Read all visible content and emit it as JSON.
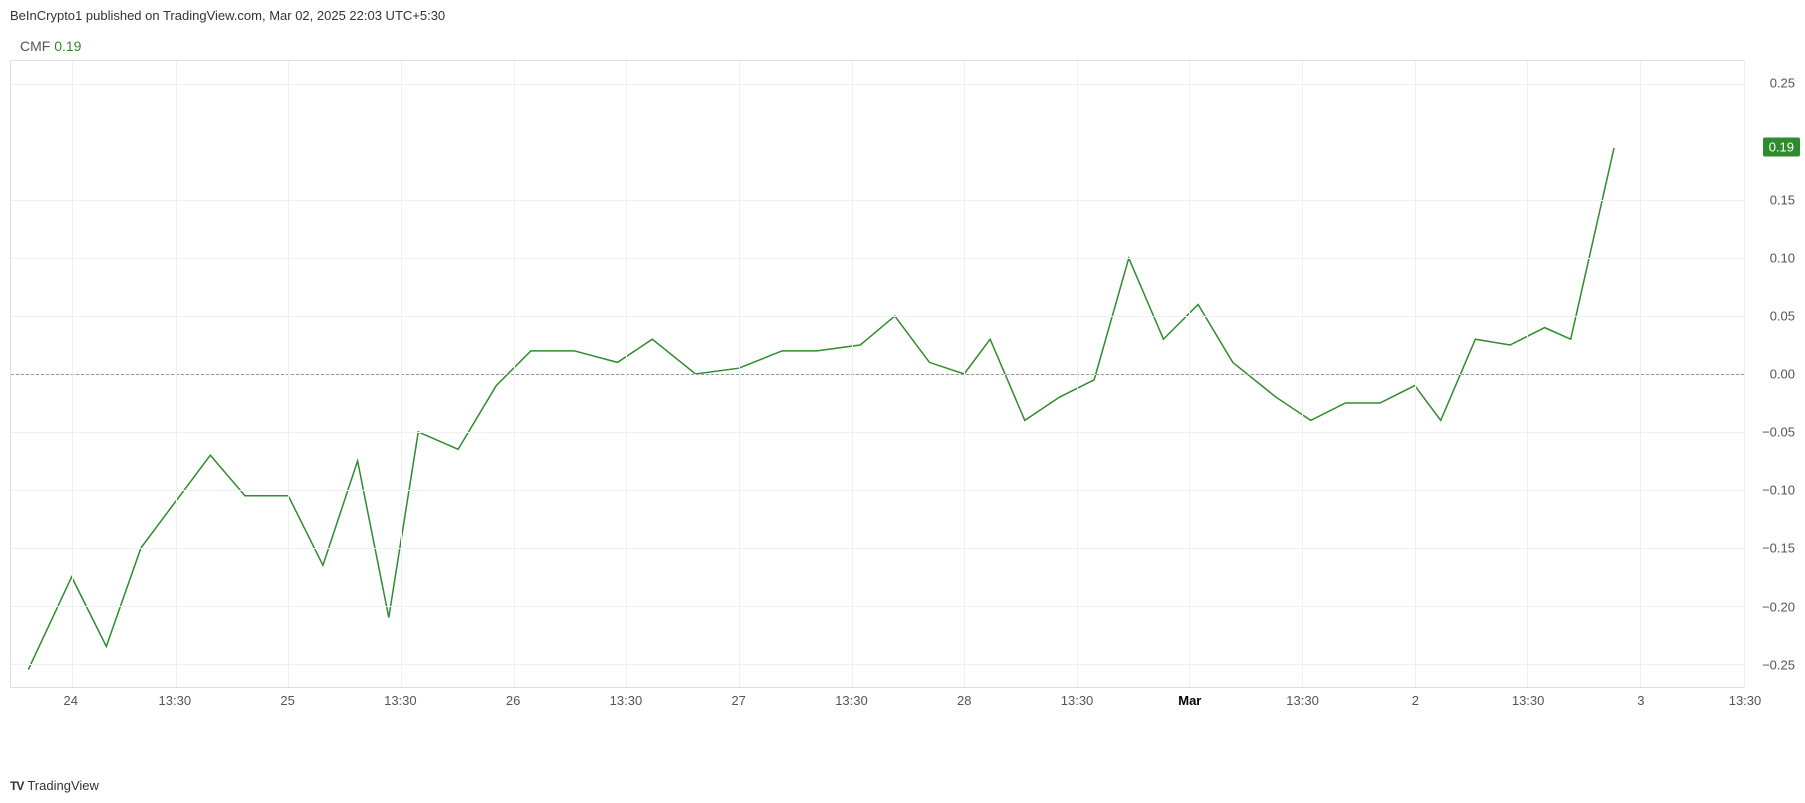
{
  "header": {
    "text": "BeInCrypto1 published on TradingView.com, Mar 02, 2025 22:03 UTC+5:30"
  },
  "indicator": {
    "name": "CMF",
    "value": "0.19",
    "value_color": "#2e8b2e"
  },
  "chart": {
    "type": "line",
    "line_color": "#2e8b2e",
    "line_width": 1.5,
    "background_color": "#ffffff",
    "grid_color": "#f0f0f0",
    "border_color": "#e0e0e0",
    "zero_line_color": "#999999",
    "ylim": [
      -0.27,
      0.27
    ],
    "y_ticks": [
      {
        "value": 0.25,
        "label": "0.25"
      },
      {
        "value": 0.15,
        "label": "0.15"
      },
      {
        "value": 0.1,
        "label": "0.10"
      },
      {
        "value": 0.05,
        "label": "0.05"
      },
      {
        "value": 0.0,
        "label": "0.00"
      },
      {
        "value": -0.05,
        "label": "−0.05"
      },
      {
        "value": -0.1,
        "label": "−0.10"
      },
      {
        "value": -0.15,
        "label": "−0.15"
      },
      {
        "value": -0.2,
        "label": "−0.20"
      },
      {
        "value": -0.25,
        "label": "−0.25"
      }
    ],
    "x_ticks": [
      {
        "pos": 0.035,
        "label": "24",
        "bold": false
      },
      {
        "pos": 0.095,
        "label": "13:30",
        "bold": false
      },
      {
        "pos": 0.16,
        "label": "25",
        "bold": false
      },
      {
        "pos": 0.225,
        "label": "13:30",
        "bold": false
      },
      {
        "pos": 0.29,
        "label": "26",
        "bold": false
      },
      {
        "pos": 0.355,
        "label": "13:30",
        "bold": false
      },
      {
        "pos": 0.42,
        "label": "27",
        "bold": false
      },
      {
        "pos": 0.485,
        "label": "13:30",
        "bold": false
      },
      {
        "pos": 0.55,
        "label": "28",
        "bold": false
      },
      {
        "pos": 0.615,
        "label": "13:30",
        "bold": false
      },
      {
        "pos": 0.68,
        "label": "Mar",
        "bold": true
      },
      {
        "pos": 0.745,
        "label": "13:30",
        "bold": false
      },
      {
        "pos": 0.81,
        "label": "2",
        "bold": false
      },
      {
        "pos": 0.875,
        "label": "13:30",
        "bold": false
      },
      {
        "pos": 0.94,
        "label": "3",
        "bold": false
      },
      {
        "pos": 1.0,
        "label": "13:30",
        "bold": false
      }
    ],
    "xlim": [
      0,
      1
    ],
    "data": [
      {
        "x": 0.01,
        "y": -0.255
      },
      {
        "x": 0.035,
        "y": -0.175
      },
      {
        "x": 0.055,
        "y": -0.235
      },
      {
        "x": 0.075,
        "y": -0.15
      },
      {
        "x": 0.095,
        "y": -0.11
      },
      {
        "x": 0.115,
        "y": -0.07
      },
      {
        "x": 0.135,
        "y": -0.105
      },
      {
        "x": 0.16,
        "y": -0.105
      },
      {
        "x": 0.18,
        "y": -0.165
      },
      {
        "x": 0.2,
        "y": -0.075
      },
      {
        "x": 0.218,
        "y": -0.21
      },
      {
        "x": 0.235,
        "y": -0.05
      },
      {
        "x": 0.258,
        "y": -0.065
      },
      {
        "x": 0.28,
        "y": -0.01
      },
      {
        "x": 0.3,
        "y": 0.02
      },
      {
        "x": 0.325,
        "y": 0.02
      },
      {
        "x": 0.35,
        "y": 0.01
      },
      {
        "x": 0.37,
        "y": 0.03
      },
      {
        "x": 0.395,
        "y": 0.0
      },
      {
        "x": 0.42,
        "y": 0.005
      },
      {
        "x": 0.445,
        "y": 0.02
      },
      {
        "x": 0.465,
        "y": 0.02
      },
      {
        "x": 0.49,
        "y": 0.025
      },
      {
        "x": 0.51,
        "y": 0.05
      },
      {
        "x": 0.53,
        "y": 0.01
      },
      {
        "x": 0.55,
        "y": 0.0
      },
      {
        "x": 0.565,
        "y": 0.03
      },
      {
        "x": 0.585,
        "y": -0.04
      },
      {
        "x": 0.605,
        "y": -0.02
      },
      {
        "x": 0.625,
        "y": -0.005
      },
      {
        "x": 0.645,
        "y": 0.1
      },
      {
        "x": 0.665,
        "y": 0.03
      },
      {
        "x": 0.685,
        "y": 0.06
      },
      {
        "x": 0.705,
        "y": 0.01
      },
      {
        "x": 0.73,
        "y": -0.02
      },
      {
        "x": 0.75,
        "y": -0.04
      },
      {
        "x": 0.77,
        "y": -0.025
      },
      {
        "x": 0.79,
        "y": -0.025
      },
      {
        "x": 0.81,
        "y": -0.01
      },
      {
        "x": 0.825,
        "y": -0.04
      },
      {
        "x": 0.845,
        "y": 0.03
      },
      {
        "x": 0.865,
        "y": 0.025
      },
      {
        "x": 0.885,
        "y": 0.04
      },
      {
        "x": 0.9,
        "y": 0.03
      },
      {
        "x": 0.925,
        "y": 0.195
      }
    ],
    "price_tag": {
      "value": "0.19",
      "y": 0.195,
      "bg_color": "#2e8b2e",
      "text_color": "#ffffff"
    }
  },
  "footer": {
    "logo": "T‍V",
    "text": "TradingView"
  }
}
